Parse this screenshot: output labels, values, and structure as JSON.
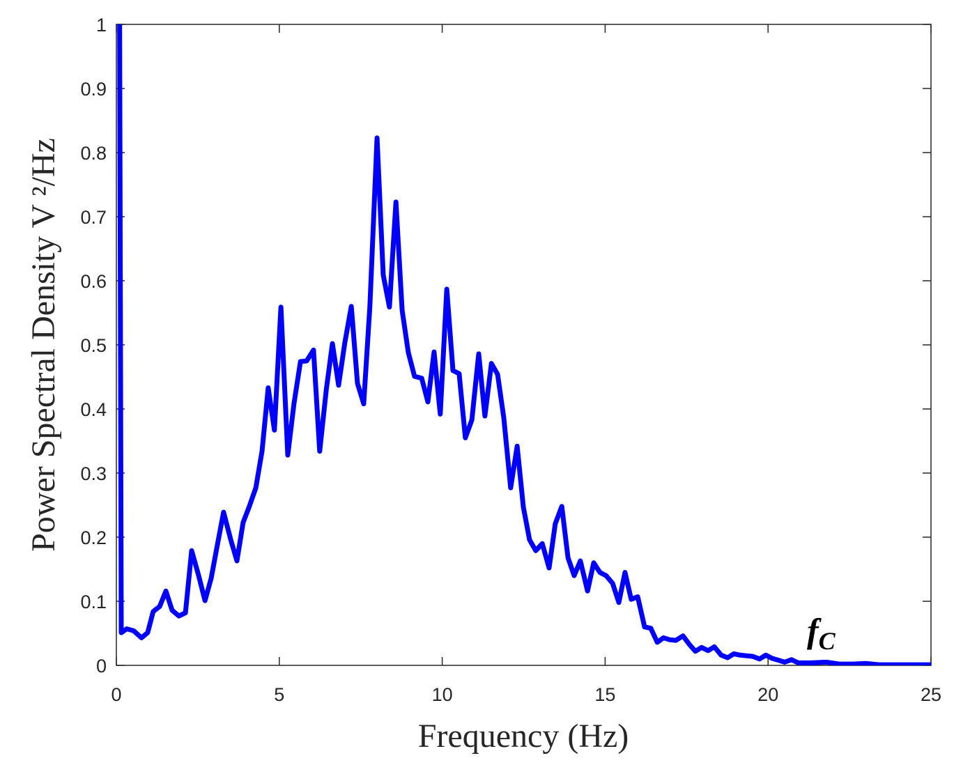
{
  "chart_data": {
    "type": "line",
    "x_label": "Frequency (Hz)",
    "y_label": "Power Spectral Density V ²/Hz",
    "annotation": {
      "text": "f",
      "subscript": "C"
    },
    "x": [
      0.1,
      0.15,
      0.32,
      0.53,
      0.77,
      0.96,
      1.13,
      1.33,
      1.52,
      1.71,
      1.92,
      2.12,
      2.31,
      2.52,
      2.72,
      2.91,
      3.1,
      3.29,
      3.51,
      3.7,
      3.89,
      4.08,
      4.28,
      4.47,
      4.66,
      4.85,
      5.05,
      5.26,
      5.45,
      5.65,
      5.84,
      6.05,
      6.24,
      6.44,
      6.63,
      6.82,
      7.01,
      7.21,
      7.4,
      7.59,
      7.78,
      8.0,
      8.19,
      8.38,
      8.58,
      8.77,
      8.96,
      9.15,
      9.37,
      9.56,
      9.75,
      9.94,
      10.14,
      10.33,
      10.52,
      10.71,
      10.91,
      11.12,
      11.31,
      11.51,
      11.7,
      11.89,
      12.1,
      12.3,
      12.49,
      12.68,
      12.87,
      13.07,
      13.28,
      13.47,
      13.67,
      13.86,
      14.05,
      14.24,
      14.46,
      14.65,
      14.84,
      15.03,
      15.23,
      15.42,
      15.61,
      15.8,
      16.0,
      16.21,
      16.4,
      16.6,
      16.79,
      16.98,
      17.17,
      17.39,
      17.58,
      17.77,
      17.96,
      18.16,
      18.35,
      18.56,
      18.76,
      18.95,
      19.14,
      19.33,
      19.53,
      19.74,
      19.93,
      20.12,
      20.32,
      20.51,
      20.72,
      20.92,
      21.3,
      21.8,
      22.2,
      22.6,
      23.0,
      23.4,
      24.0,
      24.5,
      25.0
    ],
    "series": [
      {
        "name": "PSD",
        "color": "#0000ff",
        "values": [
          1,
          0.051,
          0.057,
          0.054,
          0.043,
          0.051,
          0.084,
          0.092,
          0.116,
          0.086,
          0.077,
          0.082,
          0.179,
          0.141,
          0.101,
          0.136,
          0.188,
          0.239,
          0.196,
          0.163,
          0.223,
          0.248,
          0.277,
          0.334,
          0.433,
          0.367,
          0.559,
          0.328,
          0.408,
          0.474,
          0.475,
          0.492,
          0.334,
          0.429,
          0.502,
          0.437,
          0.503,
          0.56,
          0.44,
          0.408,
          0.56,
          0.823,
          0.609,
          0.559,
          0.723,
          0.554,
          0.488,
          0.451,
          0.448,
          0.411,
          0.489,
          0.392,
          0.587,
          0.46,
          0.455,
          0.355,
          0.383,
          0.486,
          0.389,
          0.471,
          0.454,
          0.386,
          0.277,
          0.342,
          0.247,
          0.196,
          0.179,
          0.19,
          0.152,
          0.221,
          0.248,
          0.168,
          0.14,
          0.163,
          0.116,
          0.16,
          0.145,
          0.14,
          0.128,
          0.098,
          0.145,
          0.103,
          0.107,
          0.06,
          0.058,
          0.036,
          0.043,
          0.04,
          0.039,
          0.046,
          0.033,
          0.022,
          0.028,
          0.023,
          0.029,
          0.016,
          0.012,
          0.018,
          0.016,
          0.015,
          0.014,
          0.01,
          0.016,
          0.011,
          0.008,
          0.005,
          0.009,
          0.004,
          0.004,
          0.005,
          0.002,
          0.002,
          0.003,
          0.001,
          0.001,
          0.001,
          0.001
        ]
      }
    ],
    "xlim": [
      0,
      25
    ],
    "xticks": [
      0,
      5,
      10,
      15,
      20,
      25
    ],
    "ylim": [
      0,
      1
    ],
    "yticks": [
      0,
      0.1,
      0.2,
      0.3,
      0.4,
      0.5,
      0.6,
      0.7,
      0.8,
      0.9,
      1
    ],
    "grid": false
  }
}
